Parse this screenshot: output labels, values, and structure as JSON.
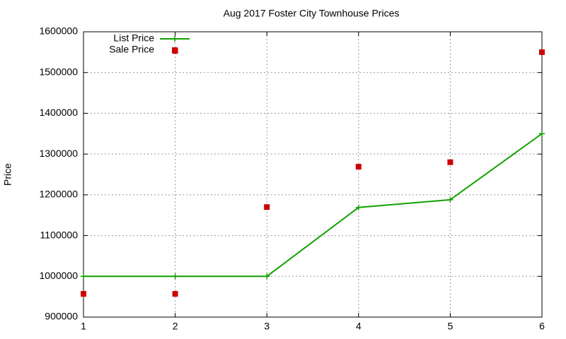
{
  "chart_data": {
    "type": "line",
    "title": "Aug 2017 Foster City Townhouse Prices",
    "y_label": "Price",
    "xlim": [
      1,
      6
    ],
    "xticks": [
      1,
      2,
      3,
      4,
      5,
      6
    ],
    "ylim": [
      900000,
      1600000
    ],
    "yticks": [
      900000,
      1000000,
      1100000,
      1200000,
      1300000,
      1400000,
      1500000,
      1600000
    ],
    "grid": true,
    "legend": "top-left",
    "series": [
      {
        "name": "List Price",
        "color": "#11a000",
        "style": "linespoints",
        "x": [
          1,
          2,
          3,
          4,
          5,
          6
        ],
        "values": [
          1000000,
          1000000,
          1000000,
          1169000,
          1188000,
          1350000
        ]
      },
      {
        "name": "Sale Price",
        "color": "#cc0000",
        "style": "points",
        "x": [
          1,
          2,
          2,
          3,
          4,
          5,
          6
        ],
        "values": [
          957000,
          957000,
          1553000,
          1170000,
          1269000,
          1280000,
          1550000
        ]
      }
    ]
  }
}
